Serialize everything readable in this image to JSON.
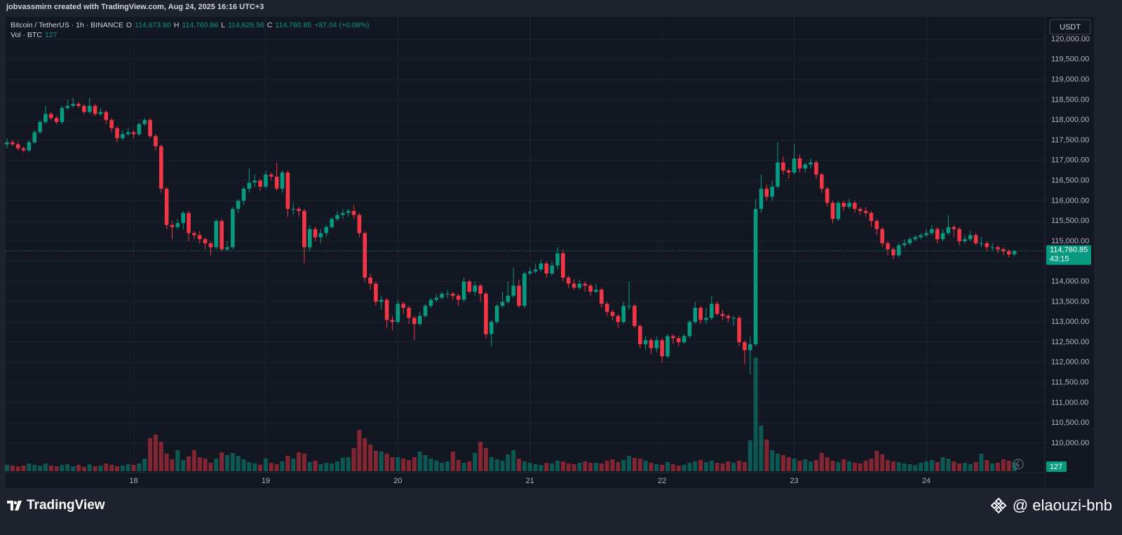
{
  "header": {
    "attribution": "jobvassmirn created with TradingView.com, Aug 24, 2025 16:16 UTC+3"
  },
  "chart_data": {
    "type": "candlestick",
    "symbol": "Bitcoin / TetherUS · 1h · BINANCE",
    "ohlc_legend": [
      {
        "key": "O",
        "text": "114,673.80"
      },
      {
        "key": "H",
        "text": "114,760.86"
      },
      {
        "key": "L",
        "text": "114,629.56"
      },
      {
        "key": "C",
        "text": "114,760.85"
      }
    ],
    "change": "+87.04 (+0.08%)",
    "volume_legend": "Vol · BTC",
    "currency": "USDT",
    "last_price_label": "114,760.85",
    "countdown": "43:15",
    "grid": true,
    "colors": {
      "up": "#089981",
      "down": "#f23645"
    },
    "ylim": [
      109305.6,
      120555.6
    ],
    "volume_ylim": [
      0,
      6480
    ],
    "yticks": [
      {
        "value": 110000,
        "label": "110,000.00"
      },
      {
        "value": 110500,
        "label": "110,500.00"
      },
      {
        "value": 111000,
        "label": "111,000.00"
      },
      {
        "value": 111500,
        "label": "111,500.00"
      },
      {
        "value": 112000,
        "label": "112,000.00"
      },
      {
        "value": 112500,
        "label": "112,500.00"
      },
      {
        "value": 113000,
        "label": "113,000.00"
      },
      {
        "value": 113500,
        "label": "113,500.00"
      },
      {
        "value": 114000,
        "label": "114,000.00"
      },
      {
        "value": 114500,
        "label": "114,500.00"
      },
      {
        "value": 115000,
        "label": "115,000.00"
      },
      {
        "value": 115500,
        "label": "115,500.00"
      },
      {
        "value": 116000,
        "label": "116,000.00"
      },
      {
        "value": 116500,
        "label": "116,500.00"
      },
      {
        "value": 117000,
        "label": "117,000.00"
      },
      {
        "value": 117500,
        "label": "117,500.00"
      },
      {
        "value": 118000,
        "label": "118,000.00"
      },
      {
        "value": 118500,
        "label": "118,500.00"
      },
      {
        "value": 119000,
        "label": "119,000.00"
      },
      {
        "value": 119500,
        "label": "119,500.00"
      },
      {
        "value": 120000,
        "label": "120,000.00"
      }
    ],
    "categories": [
      null,
      null,
      null,
      null,
      null,
      null,
      null,
      null,
      null,
      null,
      null,
      null,
      null,
      null,
      null,
      null,
      null,
      null,
      null,
      null,
      null,
      null,
      null,
      "18",
      null,
      null,
      null,
      null,
      null,
      null,
      null,
      null,
      null,
      null,
      null,
      null,
      null,
      null,
      null,
      null,
      null,
      null,
      null,
      null,
      null,
      null,
      null,
      "19",
      null,
      null,
      null,
      null,
      null,
      null,
      null,
      null,
      null,
      null,
      null,
      null,
      null,
      null,
      null,
      null,
      null,
      null,
      null,
      null,
      null,
      null,
      null,
      "20",
      null,
      null,
      null,
      null,
      null,
      null,
      null,
      null,
      null,
      null,
      null,
      null,
      null,
      null,
      null,
      null,
      null,
      null,
      null,
      null,
      null,
      null,
      null,
      "21",
      null,
      null,
      null,
      null,
      null,
      null,
      null,
      null,
      null,
      null,
      null,
      null,
      null,
      null,
      null,
      null,
      null,
      null,
      null,
      null,
      null,
      null,
      null,
      "22",
      null,
      null,
      null,
      null,
      null,
      null,
      null,
      null,
      null,
      null,
      null,
      null,
      null,
      null,
      null,
      null,
      null,
      null,
      null,
      null,
      null,
      null,
      null,
      "23",
      null,
      null,
      null,
      null,
      null,
      null,
      null,
      null,
      null,
      null,
      null,
      null,
      null,
      null,
      null,
      null,
      null,
      null,
      null,
      null,
      null,
      null,
      null,
      "24",
      null,
      null,
      null,
      null,
      null,
      null,
      null,
      null,
      null,
      null,
      null,
      null,
      null,
      null,
      null,
      null
    ],
    "open": [
      117400,
      117450,
      117400,
      117300,
      117250,
      117450,
      117700,
      117950,
      118150,
      118050,
      117950,
      118300,
      118350,
      118400,
      118350,
      118200,
      118350,
      118150,
      118200,
      118000,
      117800,
      117550,
      117650,
      117700,
      117650,
      117900,
      118000,
      117600,
      117350,
      116300,
      115400,
      115350,
      115450,
      115700,
      115200,
      115150,
      115050,
      114950,
      114850,
      115500,
      114800,
      114850,
      115800,
      116000,
      116300,
      116450,
      116500,
      116350,
      116650,
      116600,
      116300,
      116700,
      115800,
      115800,
      115750,
      114850,
      115300,
      115100,
      115200,
      115350,
      115550,
      115650,
      115700,
      115750,
      115650,
      115200,
      114100,
      113950,
      113500,
      113550,
      113050,
      113000,
      113450,
      113350,
      113100,
      112950,
      113150,
      113400,
      113550,
      113600,
      113700,
      113700,
      113650,
      113550,
      114000,
      113750,
      113900,
      113700,
      112700,
      113000,
      113400,
      113500,
      113650,
      113900,
      113400,
      114200,
      114250,
      114300,
      114450,
      114200,
      114400,
      114700,
      114100,
      113950,
      113850,
      113950,
      113900,
      113750,
      113800,
      113450,
      113250,
      113150,
      113000,
      113400,
      113400,
      112900,
      112450,
      112550,
      112350,
      112550,
      112150,
      112650,
      112600,
      112500,
      112650,
      113000,
      113350,
      113050,
      113100,
      113450,
      113200,
      113150,
      113100,
      113100,
      112500,
      112300,
      112450,
      115800,
      116300,
      116100,
      116350,
      116950,
      116750,
      116700,
      117050,
      116800,
      116900,
      116950,
      116650,
      116300,
      115950,
      115550,
      115950,
      115850,
      115950,
      115800,
      115750,
      115700,
      115500,
      115300,
      114950,
      114800,
      114650,
      114900,
      114950,
      115050,
      115100,
      115150,
      115200,
      115300,
      115050,
      115200,
      115350,
      115300,
      115000,
      115050,
      115150,
      114950,
      114950,
      114850,
      114850,
      114800,
      114750,
      114673.8
    ],
    "high": [
      117550,
      117500,
      117450,
      117350,
      117500,
      117750,
      118000,
      118350,
      118200,
      118100,
      118350,
      118500,
      118550,
      118450,
      118400,
      118550,
      118400,
      118300,
      118250,
      118050,
      117850,
      117750,
      117800,
      117750,
      117950,
      118050,
      118050,
      117650,
      117400,
      116350,
      115500,
      115550,
      115750,
      115750,
      115250,
      115250,
      115100,
      115000,
      115550,
      115550,
      115000,
      115850,
      116050,
      116350,
      116800,
      116650,
      116550,
      116750,
      116700,
      116950,
      116750,
      116750,
      115950,
      115850,
      115800,
      115400,
      115350,
      115300,
      115400,
      115600,
      115750,
      115800,
      115800,
      115900,
      115700,
      115250,
      114200,
      114000,
      113650,
      113600,
      113150,
      113550,
      113500,
      113400,
      113150,
      113250,
      113450,
      113600,
      113700,
      113750,
      113800,
      113750,
      113700,
      114100,
      114050,
      114000,
      113950,
      113750,
      113050,
      113450,
      113750,
      114000,
      114350,
      114050,
      114250,
      114350,
      114450,
      114550,
      114500,
      114500,
      114850,
      114800,
      114150,
      114050,
      114050,
      114000,
      113950,
      113950,
      113850,
      113500,
      113300,
      113200,
      113500,
      114000,
      113450,
      112950,
      112650,
      112600,
      112650,
      112600,
      112700,
      112700,
      112650,
      112700,
      113050,
      113500,
      113400,
      113350,
      113650,
      113500,
      113300,
      113200,
      113150,
      113150,
      112550,
      112650,
      116050,
      116650,
      116400,
      116500,
      117450,
      117100,
      116800,
      117400,
      117150,
      116950,
      117050,
      117000,
      116700,
      116350,
      116000,
      116000,
      116000,
      116050,
      116000,
      115850,
      115850,
      115750,
      115550,
      115350,
      115000,
      114850,
      114950,
      115050,
      115100,
      115150,
      115200,
      115300,
      115400,
      115350,
      115300,
      115650,
      115400,
      115350,
      115150,
      115250,
      115200,
      115100,
      115000,
      114950,
      114900,
      114850,
      114800,
      114760.86
    ],
    "low": [
      117300,
      117350,
      117250,
      117200,
      117200,
      117400,
      117650,
      117900,
      118000,
      117900,
      117900,
      118250,
      118300,
      118300,
      118150,
      118150,
      118100,
      118100,
      117900,
      117700,
      117450,
      117500,
      117600,
      117550,
      117600,
      117850,
      117550,
      117250,
      116200,
      115300,
      115050,
      115300,
      115300,
      115000,
      115050,
      114950,
      114800,
      114650,
      114800,
      114750,
      114750,
      114800,
      115700,
      115900,
      116200,
      116350,
      116250,
      116300,
      116500,
      116250,
      116200,
      115600,
      115650,
      115600,
      114450,
      114750,
      115000,
      114950,
      115100,
      115300,
      115500,
      115550,
      115600,
      115550,
      115100,
      114000,
      113800,
      113400,
      113300,
      112850,
      112800,
      112950,
      113200,
      112950,
      112550,
      112900,
      113100,
      113350,
      113500,
      113550,
      113600,
      113550,
      113400,
      113500,
      113700,
      113650,
      113500,
      112600,
      112400,
      112950,
      113350,
      113450,
      113600,
      113350,
      113350,
      114150,
      114200,
      114250,
      114100,
      114150,
      114300,
      114000,
      113850,
      113800,
      113800,
      113750,
      113650,
      113700,
      113350,
      113150,
      113050,
      112850,
      112950,
      113300,
      112850,
      112350,
      112300,
      112200,
      112250,
      112000,
      112100,
      112450,
      112400,
      112450,
      112600,
      112950,
      112950,
      112950,
      113050,
      113150,
      113050,
      113000,
      112900,
      112400,
      111950,
      111700,
      112400,
      115700,
      116000,
      116000,
      116300,
      116650,
      116550,
      116650,
      116700,
      116700,
      116800,
      116550,
      116200,
      115850,
      115450,
      115500,
      115750,
      115800,
      115700,
      115650,
      115600,
      115350,
      115150,
      114850,
      114650,
      114550,
      114600,
      114850,
      114900,
      115000,
      115050,
      115100,
      115150,
      114950,
      115000,
      115150,
      115100,
      114900,
      114950,
      115000,
      114900,
      114850,
      114750,
      114750,
      114700,
      114650,
      114600,
      114629.56
    ],
    "close": [
      117450,
      117400,
      117300,
      117250,
      117450,
      117700,
      117950,
      118150,
      118050,
      117950,
      118300,
      118350,
      118400,
      118350,
      118200,
      118350,
      118150,
      118200,
      118000,
      117800,
      117550,
      117650,
      117700,
      117650,
      117900,
      118000,
      117600,
      117350,
      116300,
      115400,
      115350,
      115450,
      115700,
      115200,
      115150,
      115050,
      114950,
      114850,
      115500,
      114800,
      114850,
      115800,
      116000,
      116300,
      116450,
      116500,
      116350,
      116650,
      116600,
      116300,
      116700,
      115800,
      115800,
      115750,
      114850,
      115300,
      115100,
      115200,
      115350,
      115550,
      115650,
      115700,
      115750,
      115650,
      115200,
      114100,
      113950,
      113500,
      113550,
      113050,
      113000,
      113450,
      113350,
      113100,
      112950,
      113150,
      113400,
      113550,
      113600,
      113700,
      113700,
      113650,
      113550,
      114000,
      113750,
      113900,
      113700,
      112700,
      113000,
      113400,
      113500,
      113650,
      113900,
      113400,
      114200,
      114250,
      114300,
      114450,
      114200,
      114400,
      114700,
      114100,
      113950,
      113850,
      113950,
      113900,
      113750,
      113800,
      113450,
      113250,
      113150,
      113000,
      113400,
      113400,
      112900,
      112450,
      112550,
      112350,
      112550,
      112150,
      112650,
      112600,
      112500,
      112650,
      113000,
      113350,
      113050,
      113100,
      113450,
      113200,
      113150,
      113100,
      113100,
      112500,
      112300,
      112450,
      115800,
      116300,
      116100,
      116350,
      116950,
      116750,
      116700,
      117050,
      116800,
      116900,
      116950,
      116650,
      116300,
      115950,
      115550,
      115950,
      115850,
      115950,
      115800,
      115750,
      115700,
      115500,
      115300,
      114950,
      114800,
      114650,
      114900,
      114950,
      115050,
      115100,
      115150,
      115200,
      115300,
      115050,
      115200,
      115350,
      115300,
      115000,
      115050,
      115150,
      114950,
      114950,
      114850,
      114850,
      114800,
      114750,
      114673.8,
      114760.85
    ],
    "volume": [
      90,
      80,
      70,
      80,
      110,
      90,
      80,
      110,
      80,
      70,
      90,
      100,
      70,
      90,
      60,
      100,
      70,
      80,
      110,
      90,
      70,
      80,
      100,
      90,
      110,
      180,
      470,
      520,
      420,
      250,
      170,
      300,
      160,
      210,
      300,
      200,
      180,
      120,
      180,
      270,
      230,
      260,
      220,
      170,
      130,
      110,
      90,
      180,
      120,
      100,
      140,
      220,
      180,
      270,
      250,
      130,
      150,
      100,
      120,
      110,
      140,
      190,
      200,
      330,
      590,
      470,
      380,
      290,
      280,
      250,
      200,
      200,
      180,
      160,
      200,
      280,
      230,
      180,
      150,
      120,
      140,
      280,
      160,
      120,
      140,
      260,
      420,
      330,
      200,
      170,
      150,
      240,
      300,
      180,
      140,
      120,
      100,
      90,
      120,
      110,
      150,
      140,
      110,
      100,
      120,
      140,
      120,
      120,
      110,
      150,
      170,
      130,
      160,
      220,
      190,
      180,
      150,
      120,
      100,
      90,
      130,
      100,
      80,
      90,
      120,
      140,
      160,
      130,
      150,
      120,
      110,
      140,
      120,
      150,
      130,
      440,
      1620,
      650,
      450,
      300,
      250,
      230,
      200,
      180,
      150,
      170,
      140,
      160,
      260,
      200,
      150,
      130,
      170,
      140,
      120,
      110,
      150,
      180,
      290,
      240,
      160,
      140,
      130,
      110,
      100,
      90,
      120,
      140,
      160,
      130,
      200,
      180,
      140,
      110,
      120,
      100,
      130,
      250,
      160,
      110,
      120,
      170,
      150,
      127
    ]
  },
  "footer": {
    "logo": "TradingView",
    "watermark": "@ elaouzi-bnb"
  }
}
